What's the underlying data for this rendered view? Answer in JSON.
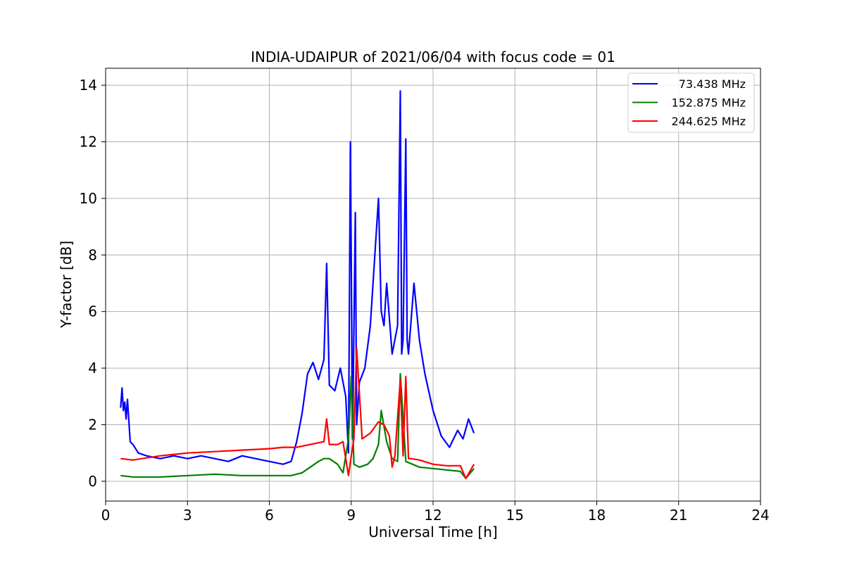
{
  "chart_data": {
    "type": "line",
    "title": "INDIA-UDAIPUR of 2021/06/04 with focus code = 01",
    "xlabel": "Universal Time [h]",
    "ylabel": "Y-factor [dB]",
    "xlim": [
      0,
      24
    ],
    "ylim": [
      -0.7,
      14.6
    ],
    "xticks": [
      0,
      3,
      6,
      9,
      12,
      15,
      18,
      21,
      24
    ],
    "yticks": [
      0,
      2,
      4,
      6,
      8,
      10,
      12,
      14
    ],
    "grid": true,
    "legend_position": "top-right",
    "series": [
      {
        "name": "73.438 MHz",
        "color": "#0000ff",
        "x": [
          0.55,
          0.6,
          0.65,
          0.7,
          0.75,
          0.8,
          0.9,
          1.0,
          1.2,
          1.5,
          2.0,
          2.5,
          3.0,
          3.5,
          4.0,
          4.5,
          5.0,
          5.5,
          6.0,
          6.5,
          6.8,
          7.0,
          7.2,
          7.4,
          7.6,
          7.8,
          8.0,
          8.1,
          8.2,
          8.4,
          8.6,
          8.8,
          8.9,
          8.97,
          9.05,
          9.15,
          9.2,
          9.3,
          9.5,
          9.7,
          9.9,
          10.0,
          10.1,
          10.2,
          10.3,
          10.5,
          10.7,
          10.8,
          10.85,
          10.9,
          11.0,
          11.05,
          11.1,
          11.3,
          11.5,
          11.7,
          12.0,
          12.3,
          12.6,
          12.9,
          13.1,
          13.3,
          13.5
        ],
        "y": [
          2.6,
          3.3,
          2.5,
          2.8,
          2.2,
          2.9,
          1.4,
          1.3,
          1.0,
          0.9,
          0.8,
          0.9,
          0.8,
          0.9,
          0.8,
          0.7,
          0.9,
          0.8,
          0.7,
          0.6,
          0.7,
          1.4,
          2.4,
          3.8,
          4.2,
          3.6,
          4.3,
          7.7,
          3.4,
          3.2,
          4.0,
          3.0,
          1.0,
          12.0,
          1.5,
          9.5,
          2.0,
          3.5,
          4.0,
          5.5,
          8.5,
          10.0,
          6.0,
          5.5,
          7.0,
          4.5,
          5.5,
          13.8,
          4.5,
          5.0,
          12.1,
          5.0,
          4.5,
          7.0,
          5.0,
          3.8,
          2.5,
          1.6,
          1.2,
          1.8,
          1.5,
          2.2,
          1.7
        ]
      },
      {
        "name": "152.875 MHz",
        "color": "#008000",
        "x": [
          0.55,
          1.0,
          2.0,
          3.0,
          4.0,
          5.0,
          6.0,
          6.8,
          7.2,
          7.5,
          7.8,
          8.0,
          8.2,
          8.5,
          8.7,
          8.9,
          9.0,
          9.1,
          9.3,
          9.6,
          9.8,
          10.0,
          10.1,
          10.3,
          10.5,
          10.7,
          10.8,
          11.0,
          11.5,
          12.0,
          12.5,
          13.0,
          13.2,
          13.5
        ],
        "y": [
          0.2,
          0.15,
          0.15,
          0.2,
          0.25,
          0.2,
          0.2,
          0.2,
          0.3,
          0.5,
          0.7,
          0.8,
          0.8,
          0.6,
          0.3,
          1.5,
          3.7,
          0.6,
          0.5,
          0.6,
          0.8,
          1.3,
          2.5,
          1.4,
          0.8,
          0.7,
          3.8,
          0.7,
          0.5,
          0.45,
          0.4,
          0.35,
          0.1,
          0.45
        ]
      },
      {
        "name": "244.625 MHz",
        "color": "#ff0000",
        "x": [
          0.55,
          1.0,
          2.0,
          3.0,
          4.0,
          5.0,
          6.0,
          6.5,
          7.0,
          7.5,
          8.0,
          8.1,
          8.2,
          8.5,
          8.7,
          8.9,
          9.0,
          9.1,
          9.2,
          9.4,
          9.7,
          10.0,
          10.2,
          10.4,
          10.5,
          10.6,
          10.8,
          10.9,
          11.0,
          11.1,
          11.2,
          11.5,
          12.0,
          12.5,
          13.0,
          13.2,
          13.5
        ],
        "y": [
          0.8,
          0.75,
          0.9,
          1.0,
          1.05,
          1.1,
          1.15,
          1.2,
          1.2,
          1.3,
          1.4,
          2.2,
          1.3,
          1.3,
          1.4,
          0.2,
          0.9,
          1.5,
          4.7,
          1.5,
          1.7,
          2.1,
          2.0,
          1.6,
          0.5,
          0.9,
          3.6,
          0.9,
          3.7,
          0.8,
          0.8,
          0.75,
          0.6,
          0.55,
          0.55,
          0.1,
          0.6
        ]
      }
    ]
  }
}
